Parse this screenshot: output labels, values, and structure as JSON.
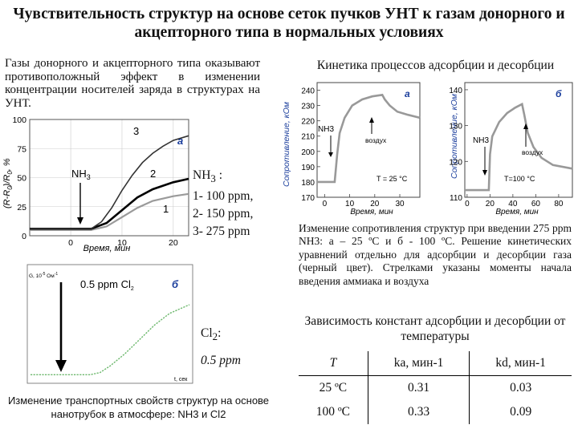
{
  "title": "Чувствительность структур на основе сеток пучков УНТ к газам донорного и акцепторного типа в нормальных условиях",
  "intro": "Газы донорного и акцепторного типа оказывают противоположный эффект в изменении концентрации носителей заряда в структурах на УНТ.",
  "kinetics_heading": "Кинетика процессов адсорбции и десорбции",
  "plot_a": {
    "panel": "а",
    "ylabel": "(R-R",
    "ylabel_sub": "0",
    "ylabel_mid": ")/R",
    "ylabel_sub2": "0",
    "ylabel_end": ", %",
    "xlabel": "Время, мин",
    "yticks": [
      "100",
      "75",
      "50",
      "25",
      "0"
    ],
    "xticks": [
      "0",
      "10",
      "20"
    ],
    "gas": "NH",
    "gas_sub": "3",
    "curve_labels": [
      "3",
      "2",
      "1"
    ],
    "chart_data": {
      "type": "line",
      "xlabel": "Время, мин",
      "ylabel": "(R-R0)/R0, %",
      "ylim": [
        0,
        100
      ],
      "xlim": [
        -8,
        23
      ],
      "series": [
        {
          "name": "1",
          "x": [
            -8,
            4,
            7,
            10,
            13,
            16,
            20,
            23
          ],
          "y": [
            5,
            5,
            8,
            16,
            24,
            30,
            34,
            36
          ]
        },
        {
          "name": "2",
          "x": [
            -8,
            4,
            7,
            10,
            13,
            16,
            20,
            23
          ],
          "y": [
            6,
            6,
            11,
            22,
            33,
            40,
            46,
            49
          ]
        },
        {
          "name": "3",
          "x": [
            -8,
            4,
            6,
            8,
            10,
            12,
            14,
            16,
            18,
            20,
            23
          ],
          "y": [
            6,
            6,
            12,
            24,
            39,
            52,
            63,
            71,
            77,
            82,
            86
          ]
        }
      ]
    }
  },
  "legend": {
    "gas": "NH",
    "gas_sub": "3",
    "colon": " :",
    "items": [
      "1- 100 ppm,",
      "2- 150 ppm,",
      "3- 275 ppm"
    ]
  },
  "plot_b": {
    "panel": "б",
    "ylabel": "G, 10",
    "ylabel_sup": "-5",
    "ylabel_end": " Ом",
    "ylabel_sup2": "-1",
    "series_label": "0.5 ppm Cl",
    "series_label_sub": "2",
    "xlabel": "t, сек",
    "chart_data": {
      "type": "line",
      "series": [
        {
          "x": [
            0,
            60,
            70,
            80,
            95,
            110,
            125,
            140,
            160
          ],
          "y": [
            0.03,
            0.03,
            0.06,
            0.15,
            0.32,
            0.52,
            0.72,
            0.88,
            1.0
          ]
        }
      ]
    }
  },
  "cl": {
    "label": "Cl",
    "label_sub": "2",
    "label_colon": ":",
    "value": "0.5 ppm"
  },
  "caption_left": "Изменение транспортных свойств структур на основе нанотрубок в атмосфере: NH3 и Cl2",
  "kin_a": {
    "panel": "а",
    "ylabel": "Сопротивление, кОм",
    "yticks": [
      "240",
      "230",
      "220",
      "210",
      "200",
      "190",
      "180",
      "170"
    ],
    "xticks": [
      "0",
      "10",
      "20",
      "30"
    ],
    "xlabel": "Время, мин",
    "gas": "NH3",
    "air": "воздух",
    "temp": "T = 25 °C",
    "chart_data": {
      "type": "line",
      "xlim": [
        -3,
        38
      ],
      "ylim": [
        170,
        245
      ],
      "series": [
        {
          "x": [
            -3,
            4,
            5,
            6,
            8,
            11,
            15,
            19,
            23,
            24,
            26,
            29,
            33,
            38
          ],
          "y": [
            180,
            180,
            198,
            212,
            222,
            230,
            234,
            236,
            237,
            234,
            230,
            226,
            224,
            222
          ]
        }
      ]
    }
  },
  "kin_b": {
    "panel": "б",
    "yticks": [
      "140",
      "130",
      "120",
      "110"
    ],
    "xticks": [
      "0",
      "20",
      "40",
      "60",
      "80"
    ],
    "xlabel": "Время, мин",
    "ylabel": "Сопротивление, кОм",
    "gas": "NH3",
    "air": "воздух",
    "temp": "T=100 °C",
    "chart_data": {
      "type": "line",
      "xlim": [
        -2,
        92
      ],
      "ylim": [
        110,
        142
      ],
      "series": [
        {
          "x": [
            -2,
            19,
            20,
            22,
            28,
            35,
            42,
            48,
            50,
            53,
            58,
            65,
            75,
            92
          ],
          "y": [
            112,
            112,
            122,
            127,
            131,
            133.5,
            135,
            136,
            133,
            128,
            124,
            121,
            119,
            118
          ]
        }
      ]
    }
  },
  "caption_right": "Изменение сопротивления структур при введении 275 ppm NH3: а – 25 ºC и б - 100 ºC. Решение кинетических уравнений отдельно для адсорбции и десорбции газа (черный цвет). Стрелками указаны моменты начала введения аммиака и воздуха",
  "dependence_heading": "Зависимость констант адсорбции и десорбции от температуры",
  "table": {
    "headers": [
      "T",
      "ka, мин-1",
      "kd, мин-1"
    ],
    "rows": [
      [
        "25 ºC",
        "0.31",
        "0.03"
      ],
      [
        "100 ºC",
        "0.33",
        "0.09"
      ]
    ]
  }
}
